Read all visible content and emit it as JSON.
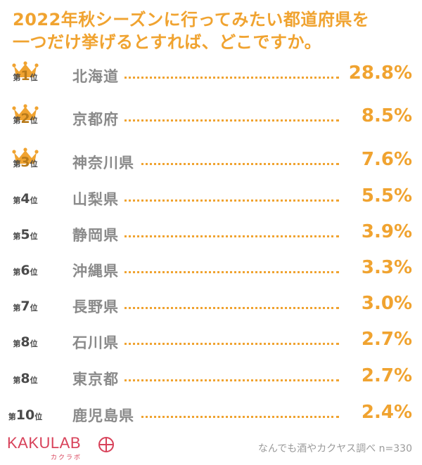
{
  "title": {
    "line1": "2022年秋シーズンに行ってみたい都道府県を",
    "line2": "一つだけ挙げるとすれば、どこですか。"
  },
  "rank_prefix": "第",
  "rank_suffix": "位",
  "colors": {
    "accent": "#f0a330",
    "brand": "#d8425a",
    "crown": "#f0a330"
  },
  "chart_data": {
    "type": "table",
    "title": "2022年秋シーズンに行ってみたい都道府県を一つだけ挙げるとすれば、どこですか。",
    "rows": [
      {
        "rank": "1",
        "prefecture": "北海道",
        "percent": "28.8%",
        "value": 28.8,
        "crown": true
      },
      {
        "rank": "2",
        "prefecture": "京都府",
        "percent": "8.5%",
        "value": 8.5,
        "crown": true
      },
      {
        "rank": "3",
        "prefecture": "神奈川県",
        "percent": "7.6%",
        "value": 7.6,
        "crown": true
      },
      {
        "rank": "4",
        "prefecture": "山梨県",
        "percent": "5.5%",
        "value": 5.5,
        "crown": false
      },
      {
        "rank": "5",
        "prefecture": "静岡県",
        "percent": "3.9%",
        "value": 3.9,
        "crown": false
      },
      {
        "rank": "6",
        "prefecture": "沖縄県",
        "percent": "3.3%",
        "value": 3.3,
        "crown": false
      },
      {
        "rank": "7",
        "prefecture": "長野県",
        "percent": "3.0%",
        "value": 3.0,
        "crown": false
      },
      {
        "rank": "8",
        "prefecture": "石川県",
        "percent": "2.7%",
        "value": 2.7,
        "crown": false
      },
      {
        "rank": "8",
        "prefecture": "東京都",
        "percent": "2.7%",
        "value": 2.7,
        "crown": false
      },
      {
        "rank": "10",
        "prefecture": "鹿児島県",
        "percent": "2.4%",
        "value": 2.4,
        "crown": false
      }
    ]
  },
  "brand": {
    "name": "KAKULAB",
    "kana": "カクラボ"
  },
  "source": "なんでも酒やカクヤス調べ n=330"
}
